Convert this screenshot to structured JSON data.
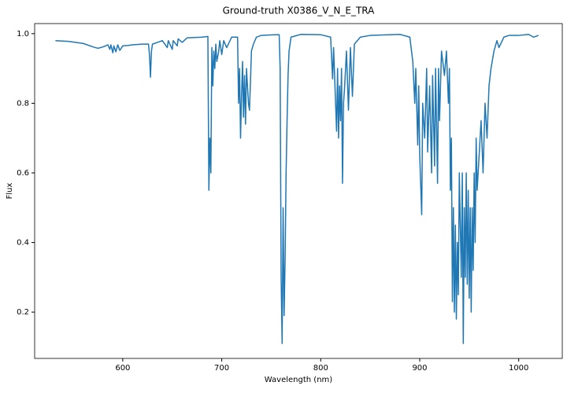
{
  "chart_data": {
    "type": "line",
    "title": "Ground-truth X0386_V_N_E_TRA",
    "xlabel": "Wavelength (nm)",
    "ylabel": "Flux",
    "xlim": [
      511,
      1044
    ],
    "ylim": [
      0.067,
      1.029
    ],
    "xticks": [
      600,
      700,
      800,
      900,
      1000
    ],
    "yticks": [
      0.2,
      0.4,
      0.6,
      0.8,
      {
        "value": 1,
        "label": "1.0"
      }
    ],
    "series": [
      {
        "color": "#1f77b4",
        "x": [
          532,
          545,
          560,
          570,
          575,
          580,
          585,
          587,
          588,
          590,
          591,
          593,
          595,
          597,
          600,
          605,
          610,
          620,
          626,
          627,
          628,
          629,
          630,
          635,
          640,
          645,
          646,
          650,
          651,
          655,
          656,
          660,
          665,
          680,
          686,
          687,
          688,
          689,
          690,
          691,
          692,
          693,
          694,
          695,
          697,
          698,
          700,
          702,
          705,
          710,
          716,
          717,
          718,
          719,
          720,
          721,
          722,
          723,
          724,
          725,
          727,
          728,
          729,
          730,
          732,
          735,
          740,
          755,
          758,
          759,
          760,
          761,
          762,
          763,
          764,
          765,
          766,
          767,
          768,
          770,
          780,
          800,
          810,
          812,
          813,
          815,
          816,
          817,
          818,
          819,
          820,
          821,
          822,
          823,
          824,
          826,
          828,
          830,
          832,
          834,
          840,
          850,
          880,
          890,
          893,
          895,
          896,
          898,
          899,
          900,
          902,
          903,
          905,
          907,
          908,
          910,
          912,
          913,
          915,
          916,
          918,
          919,
          920,
          922,
          925,
          927,
          929,
          930,
          931,
          932,
          933,
          934,
          935,
          936,
          937,
          938,
          939,
          940,
          942,
          943,
          944,
          945,
          946,
          947,
          948,
          949,
          950,
          951,
          952,
          953,
          954,
          955,
          956,
          957,
          958,
          960,
          962,
          964,
          966,
          968,
          970,
          972,
          975,
          978,
          980,
          985,
          990,
          1000,
          1010,
          1015,
          1020
        ],
        "values": [
          0.98,
          0.978,
          0.972,
          0.962,
          0.958,
          0.962,
          0.968,
          0.955,
          0.968,
          0.945,
          0.965,
          0.948,
          0.968,
          0.952,
          0.965,
          0.966,
          0.968,
          0.97,
          0.97,
          0.94,
          0.875,
          0.95,
          0.97,
          0.975,
          0.98,
          0.96,
          0.98,
          0.955,
          0.98,
          0.965,
          0.985,
          0.975,
          0.988,
          0.99,
          0.992,
          0.55,
          0.7,
          0.6,
          0.96,
          0.85,
          0.95,
          0.9,
          0.97,
          0.92,
          0.95,
          0.98,
          0.94,
          0.98,
          0.96,
          0.99,
          0.99,
          0.8,
          0.9,
          0.7,
          0.82,
          0.92,
          0.76,
          0.88,
          0.74,
          0.9,
          0.8,
          0.78,
          0.86,
          0.95,
          0.97,
          0.99,
          0.995,
          0.997,
          0.997,
          0.9,
          0.3,
          0.11,
          0.5,
          0.19,
          0.35,
          0.6,
          0.75,
          0.88,
          0.95,
          0.99,
          0.998,
          0.997,
          0.99,
          0.87,
          0.96,
          0.8,
          0.72,
          0.9,
          0.7,
          0.85,
          0.75,
          0.9,
          0.57,
          0.8,
          0.84,
          0.95,
          0.78,
          0.96,
          0.82,
          0.97,
          0.99,
          0.995,
          0.998,
          0.99,
          0.92,
          0.8,
          0.9,
          0.68,
          0.85,
          0.65,
          0.48,
          0.8,
          0.7,
          0.9,
          0.66,
          0.85,
          0.6,
          0.88,
          0.62,
          0.9,
          0.57,
          0.9,
          0.75,
          0.95,
          0.88,
          0.95,
          0.8,
          0.9,
          0.55,
          0.7,
          0.23,
          0.5,
          0.2,
          0.45,
          0.18,
          0.4,
          0.25,
          0.6,
          0.3,
          0.6,
          0.11,
          0.5,
          0.3,
          0.6,
          0.28,
          0.55,
          0.24,
          0.5,
          0.2,
          0.5,
          0.32,
          0.6,
          0.4,
          0.7,
          0.55,
          0.65,
          0.75,
          0.6,
          0.8,
          0.7,
          0.85,
          0.9,
          0.95,
          0.98,
          0.96,
          0.99,
          0.995,
          0.995,
          0.998,
          0.99,
          0.995
        ]
      }
    ]
  }
}
